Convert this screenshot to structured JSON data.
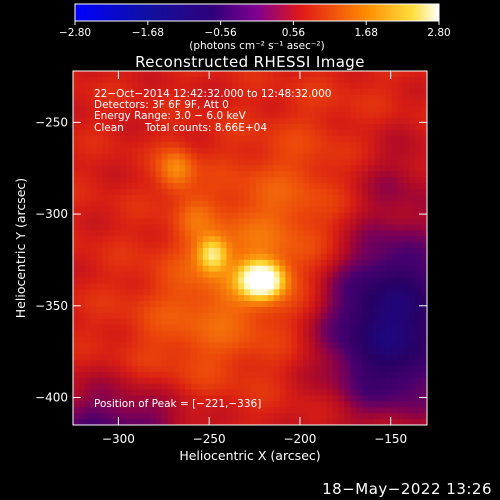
{
  "chart_data": {
    "type": "heatmap",
    "title": "Reconstructed RHESSI Image",
    "xlabel": "Heliocentric X (arcsec)",
    "ylabel": "Heliocentric Y (arcsec)",
    "xlim": [
      -325,
      -130
    ],
    "ylim": [
      -415,
      -222
    ],
    "xticks": [
      -300,
      -250,
      -200,
      -150
    ],
    "xtick_labels": [
      "−300",
      "−250",
      "−200",
      "−150"
    ],
    "yticks": [
      -250,
      -300,
      -350,
      -400
    ],
    "ytick_labels": [
      "−250",
      "−300",
      "−350",
      "−400"
    ],
    "colorbar": {
      "range": [
        -2.8,
        2.8
      ],
      "ticks": [
        -2.8,
        -1.68,
        -0.56,
        0.56,
        1.68,
        2.8
      ],
      "tick_labels": [
        "−2.80",
        "−1.68",
        "−0.56",
        "0.56",
        "1.68",
        "2.80"
      ],
      "unit_label": "(photons cm⁻² s⁻¹ asec⁻²)"
    },
    "annotations": {
      "time_range": "22−Oct−2014 12:42:32.000 to 12:48:32.000",
      "detectors": "Detectors: 3F 6F 9F, Att 0",
      "energy": "Energy Range: 3.0 − 6.0 keV",
      "method": "Clean",
      "counts": "Total counts: 8.66E+04",
      "peak": "Position of Peak = [−221,−336]"
    },
    "peak": {
      "x": -221,
      "y": -336
    },
    "sources": [
      {
        "x": -221,
        "y": -336,
        "amplitude": 2.5
      },
      {
        "x": -248,
        "y": -322,
        "amplitude": 1.3
      },
      {
        "x": -268,
        "y": -276,
        "amplitude": 0.75
      },
      {
        "x": -258,
        "y": -302,
        "amplitude": 0.3
      }
    ]
  },
  "footer": {
    "date_stamp": "18−May−2022 13:26"
  }
}
